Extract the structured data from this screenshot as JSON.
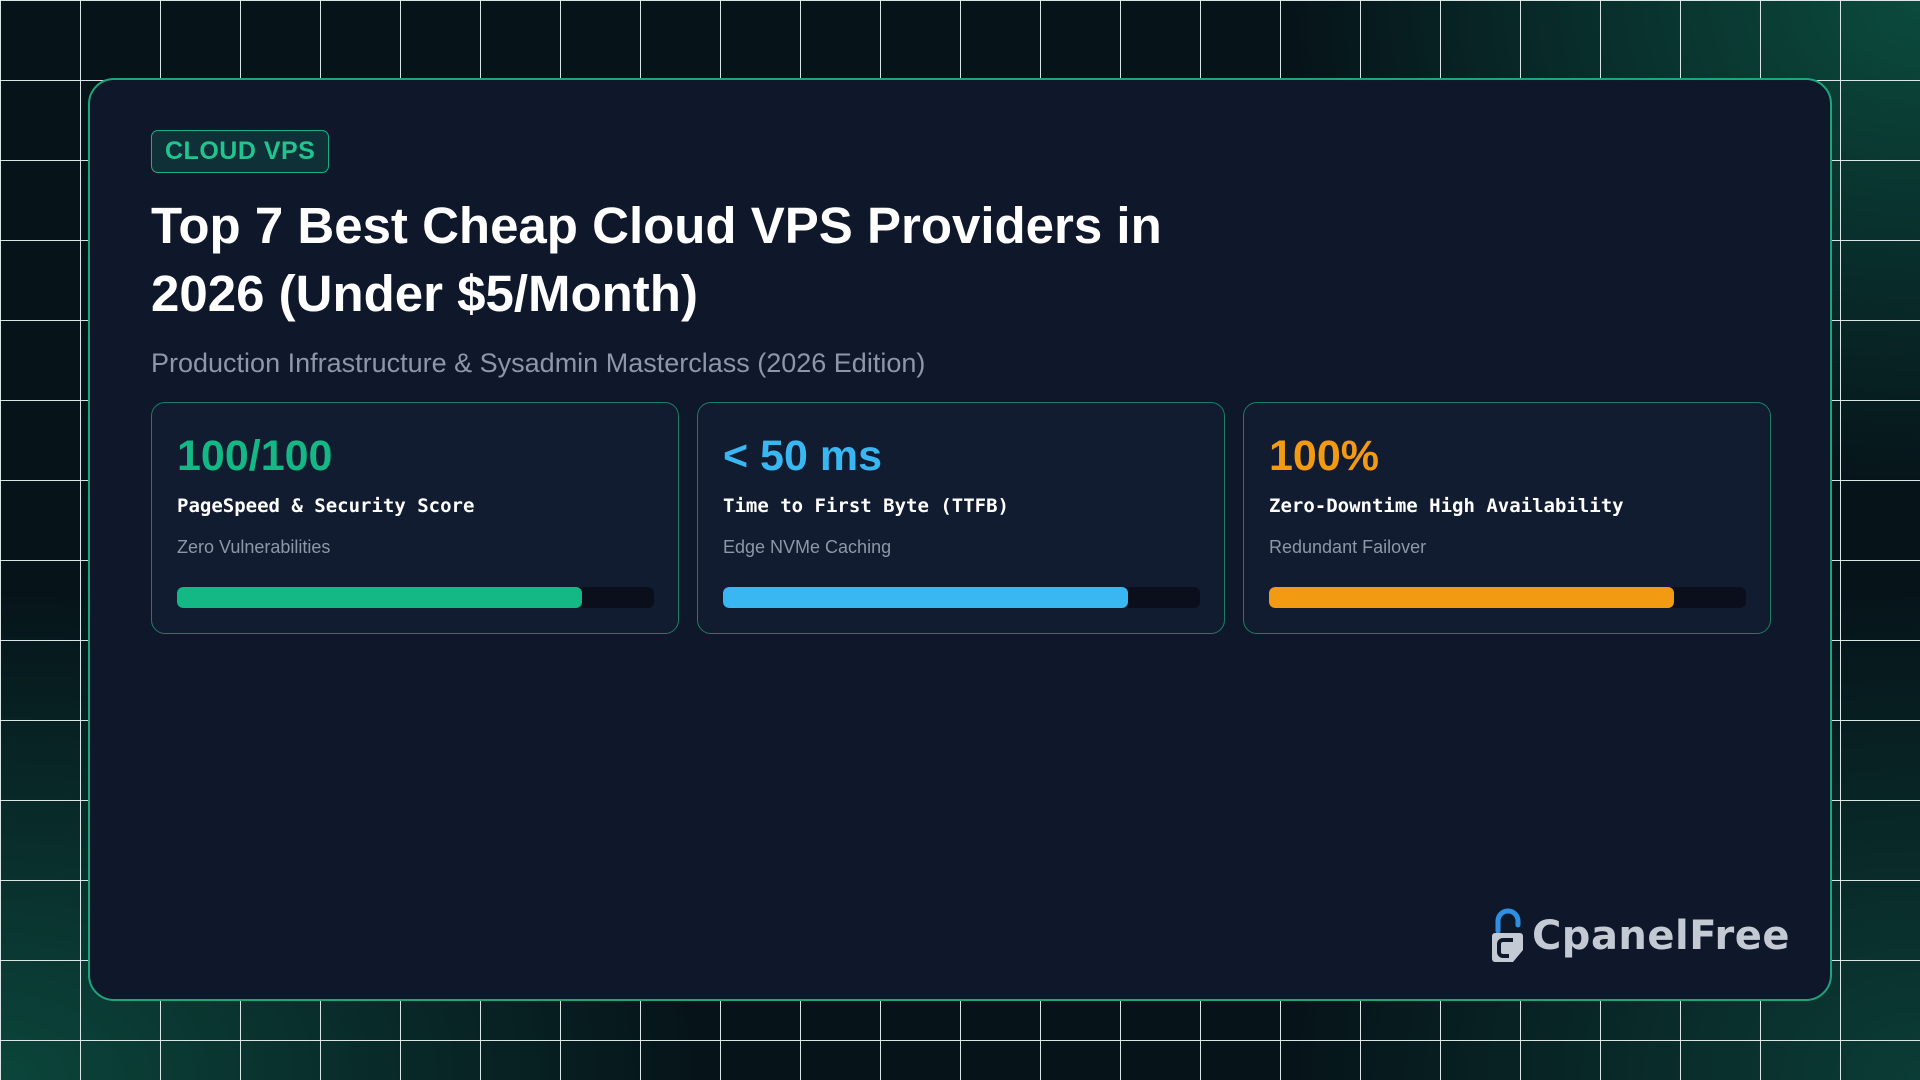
{
  "badge": {
    "label": "CLOUD VPS"
  },
  "title": "Top 7 Best Cheap Cloud VPS Providers in 2026 (Under $5/Month)",
  "subtitle": "Production Infrastructure & Sysadmin Masterclass (2026 Edition)",
  "stats": [
    {
      "value": "100/100",
      "label": "PageSpeed & Security Score",
      "sub": "Zero Vulnerabilities",
      "progress": 0.85,
      "color": "#14b884"
    },
    {
      "value": "< 50 ms",
      "label": "Time to First Byte (TTFB)",
      "sub": "Edge NVMe Caching",
      "progress": 0.85,
      "color": "#39b7f2"
    },
    {
      "value": "100%",
      "label": "Zero-Downtime High Availability",
      "sub": "Redundant Failover",
      "progress": 0.85,
      "color": "#f29a12"
    }
  ],
  "logo": {
    "text": "CpanelFree",
    "icon": "padlock-c-icon"
  },
  "colors": {
    "accent": "#1fa57a",
    "card_background": "#0f182b",
    "page_background": "#06141a"
  }
}
